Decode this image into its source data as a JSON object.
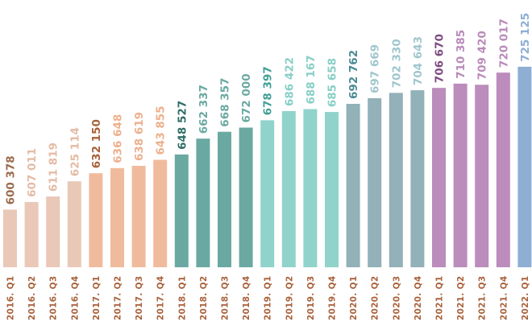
{
  "chart_data": {
    "type": "bar",
    "title": "",
    "xlabel": "",
    "ylabel": "",
    "categories": [
      "2016. Q1",
      "2016. Q2",
      "2016. Q3",
      "2016. Q4",
      "2017. Q1",
      "2017. Q2",
      "2017. Q3",
      "2017. Q4",
      "2018. Q1",
      "2018. Q2",
      "2018. Q3",
      "2018. Q4",
      "2019. Q1",
      "2019. Q2",
      "2019. Q3",
      "2019. Q4",
      "2020. Q1",
      "2020. Q2",
      "2020. Q3",
      "2020. Q4",
      "2021. Q1",
      "2021. Q2",
      "2021. Q3",
      "2021. Q4",
      "2022. Q1"
    ],
    "values": [
      600378,
      607011,
      611819,
      625114,
      632150,
      636648,
      638619,
      643855,
      648527,
      662337,
      668357,
      672000,
      678397,
      686422,
      688167,
      685658,
      692762,
      697669,
      702330,
      704643,
      706670,
      710385,
      709420,
      720017,
      725125
    ],
    "value_labels": [
      "600 378",
      "607 011",
      "611 819",
      "625 114",
      "632 150",
      "636 648",
      "638 619",
      "643 855",
      "648 527",
      "662 337",
      "668 357",
      "672 000",
      "678 397",
      "686 422",
      "688 167",
      "685 658",
      "692 762",
      "697 669",
      "702 330",
      "704 643",
      "706 670",
      "710 385",
      "709 420",
      "720 017",
      "725 125"
    ],
    "year_colors": {
      "2016": {
        "bar": "#e9c8b7",
        "label": "#e4bba5",
        "label_dark": "#9c6a4c"
      },
      "2017": {
        "bar": "#f0bb9c",
        "label": "#edb08c",
        "label_dark": "#a8613a"
      },
      "2018": {
        "bar": "#6aa9a1",
        "label": "#6aa9a1",
        "label_dark": "#2e6e66"
      },
      "2019": {
        "bar": "#90d3cb",
        "label": "#86cfc6",
        "label_dark": "#3f9f94"
      },
      "2020": {
        "bar": "#92b1b8",
        "label": "#9ec6cc",
        "label_dark": "#4a8a93"
      },
      "2021": {
        "bar": "#bb8cbc",
        "label": "#b98ab9",
        "label_dark": "#7c4a80"
      },
      "2022": {
        "bar": "#8eaed4",
        "label": "#8eaed4",
        "label_dark": "#5d82b0"
      }
    },
    "category_label_color": "#a8613a",
    "ylim": [
      550000,
      730000
    ],
    "grid": false,
    "legend": "none"
  }
}
